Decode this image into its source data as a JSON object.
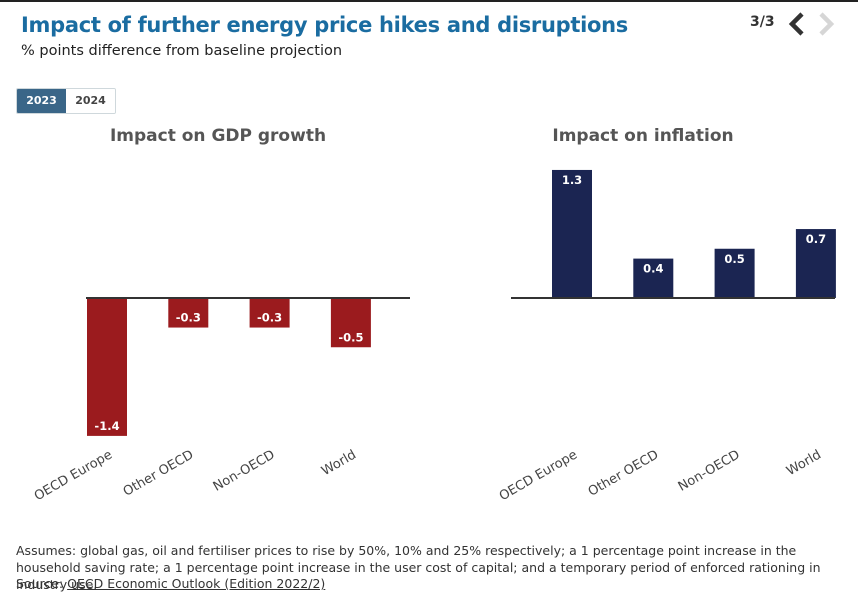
{
  "header": {
    "title": "Impact of further energy price hikes and disruptions",
    "subtitle": "% points difference from baseline projection",
    "pager": "3/3"
  },
  "tabs": [
    {
      "label": "2023",
      "active": true
    },
    {
      "label": "2024",
      "active": false
    }
  ],
  "icons": {
    "prev": "chevron-left-icon",
    "next": "chevron-right-icon"
  },
  "colors": {
    "gdp": "#9b1b1e",
    "inflation": "#1b2552",
    "title": "#1a6ca1",
    "active_tab": "#3a6688"
  },
  "chart_data": [
    {
      "type": "bar",
      "title": "Impact on GDP growth",
      "categories": [
        "OECD Europe",
        "Other OECD",
        "Non-OECD",
        "World"
      ],
      "values": [
        -1.4,
        -0.3,
        -0.3,
        -0.5
      ],
      "value_labels": [
        "-1.4",
        "-0.3",
        "-0.3",
        "-0.5"
      ],
      "color": "#9b1b1e",
      "ylim": [
        -1.4,
        1.3
      ],
      "grid": false
    },
    {
      "type": "bar",
      "title": "Impact on inflation",
      "categories": [
        "OECD Europe",
        "Other OECD",
        "Non-OECD",
        "World"
      ],
      "values": [
        1.3,
        0.4,
        0.5,
        0.7
      ],
      "value_labels": [
        "1.3",
        "0.4",
        "0.5",
        "0.7"
      ],
      "color": "#1b2552",
      "ylim": [
        -1.4,
        1.3
      ],
      "grid": false
    }
  ],
  "footnote": {
    "text": "Assumes: global gas, oil and fertiliser prices to rise by 50%, 10% and 25% respectively; a 1 percentage point increase in the household saving rate; a 1 percentage point increase in the user cost of capital; and a temporary period of enforced rationing in industry use.",
    "source_prefix": "Source: ",
    "source_link": "OECD Economic Outlook (Edition 2022/2)"
  }
}
